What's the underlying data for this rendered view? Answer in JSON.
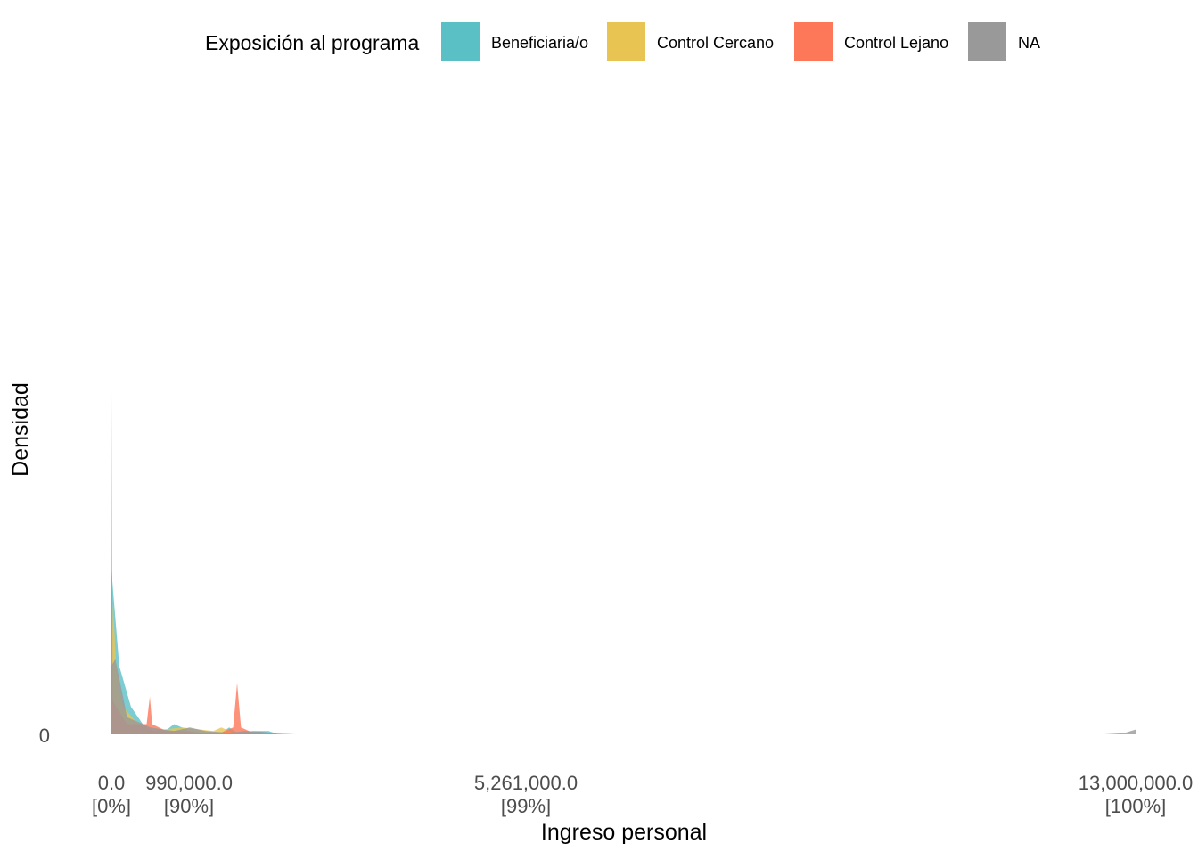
{
  "chart_data": {
    "type": "area",
    "title": "",
    "xlabel": "Ingreso personal",
    "ylabel": "Densidad",
    "legend": {
      "title": "Exposición al programa",
      "placement": "top",
      "entries": [
        {
          "label": "Beneficiaria/o",
          "color": "#5bbfc6"
        },
        {
          "label": "Control Cercano",
          "color": "#e8c553"
        },
        {
          "label": "Control Lejano",
          "color": "#fd7759"
        },
        {
          "label": "NA",
          "color": "#999999"
        }
      ]
    },
    "x_ticks": [
      {
        "value": 0,
        "label": "0.0",
        "sublabel": "[0%]"
      },
      {
        "value": 990000,
        "label": "990,000.0",
        "sublabel": "[90%]"
      },
      {
        "value": 5261000,
        "label": "5,261,000.0",
        "sublabel": "[99%]"
      },
      {
        "value": 13000000,
        "label": "13,000,000.0",
        "sublabel": "[100%]"
      }
    ],
    "y_ticks": [
      {
        "value": 0,
        "label": "0"
      }
    ],
    "xlim": [
      0,
      13000000
    ],
    "ylim_relative": [
      0,
      1
    ],
    "x_scale": "quantile",
    "grid": false,
    "series": [
      {
        "name": "Beneficiaria/o",
        "color": "#5bbfc6",
        "points": [
          [
            0,
            0.48
          ],
          [
            100000,
            0.2
          ],
          [
            250000,
            0.08
          ],
          [
            400000,
            0.03
          ],
          [
            500000,
            0.01
          ],
          [
            600000,
            0.01
          ],
          [
            700000,
            0.012
          ],
          [
            800000,
            0.03
          ],
          [
            900000,
            0.02
          ],
          [
            1000000,
            0.01
          ],
          [
            1200000,
            0.005
          ],
          [
            1400000,
            0.005
          ],
          [
            1500000,
            0.02
          ],
          [
            1600000,
            0.005
          ],
          [
            1800000,
            0.01
          ],
          [
            2000000,
            0.01
          ],
          [
            2100000,
            0.002
          ],
          [
            2350000,
            0
          ]
        ]
      },
      {
        "name": "Control Cercano",
        "color": "#e8c553",
        "points": [
          [
            0,
            0.2
          ],
          [
            20000,
            0.38
          ],
          [
            60000,
            0.2
          ],
          [
            150000,
            0.08
          ],
          [
            300000,
            0.04
          ],
          [
            450000,
            0.02
          ],
          [
            550000,
            0.01
          ],
          [
            700000,
            0.015
          ],
          [
            900000,
            0.02
          ],
          [
            1100000,
            0.015
          ],
          [
            1300000,
            0.01
          ],
          [
            1400000,
            0.02
          ],
          [
            1450000,
            0.015
          ],
          [
            1550000,
            0.005
          ],
          [
            1700000,
            0
          ],
          [
            2350000,
            0
          ]
        ]
      },
      {
        "name": "Control Lejano",
        "color": "#fd7759",
        "points": [
          [
            0,
            0.01
          ],
          [
            5000,
            1.0
          ],
          [
            15000,
            0.1
          ],
          [
            60000,
            0.08
          ],
          [
            200000,
            0.03
          ],
          [
            450000,
            0.03
          ],
          [
            490000,
            0.11
          ],
          [
            520000,
            0.03
          ],
          [
            700000,
            0.01
          ],
          [
            900000,
            0.01
          ],
          [
            1100000,
            0.005
          ],
          [
            1400000,
            0.005
          ],
          [
            1550000,
            0.02
          ],
          [
            1600000,
            0.15
          ],
          [
            1650000,
            0.02
          ],
          [
            1800000,
            0.005
          ],
          [
            2000000,
            0
          ],
          [
            2350000,
            0
          ]
        ]
      },
      {
        "name": "NA",
        "color": "#999999",
        "points": [
          [
            0,
            0.2
          ],
          [
            50000,
            0.22
          ],
          [
            200000,
            0.05
          ],
          [
            500000,
            0.02
          ],
          [
            800000,
            0.01
          ],
          [
            1000000,
            0.02
          ],
          [
            1200000,
            0.01
          ],
          [
            1500000,
            0.005
          ],
          [
            1700000,
            0.01
          ],
          [
            1900000,
            0.008
          ],
          [
            2100000,
            0.002
          ],
          [
            2300000,
            0
          ],
          [
            12600000,
            0
          ],
          [
            12850000,
            0.003
          ],
          [
            13000000,
            0.014
          ]
        ]
      }
    ]
  }
}
